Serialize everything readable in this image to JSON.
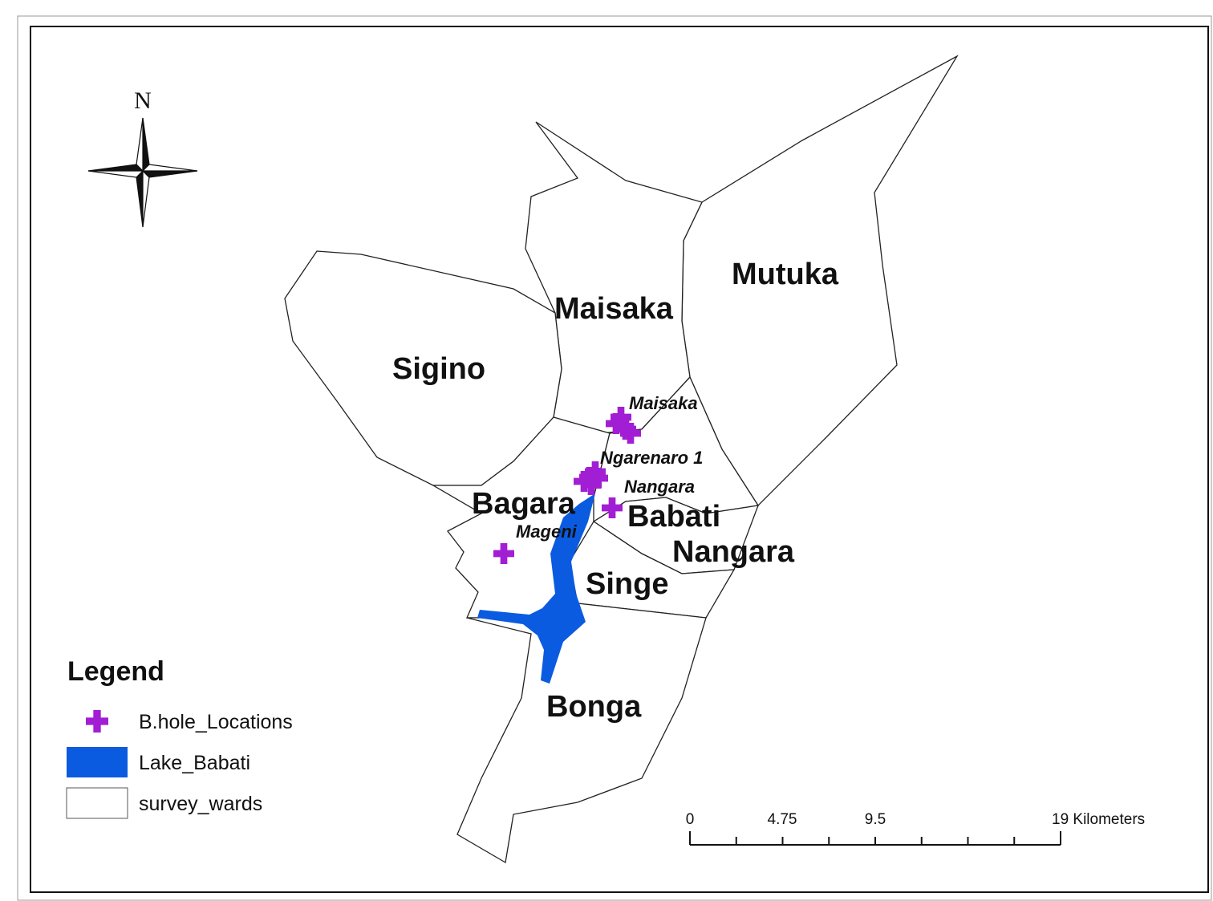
{
  "colors": {
    "borehole": "#a21ed4",
    "lake": "#0a5be0",
    "ward_fill": "#ffffff",
    "ward_stroke": "#222222"
  },
  "north_arrow": {
    "label": "N",
    "icon": "compass-rose-icon"
  },
  "wards": [
    {
      "id": "mutuka",
      "label": "Mutuka"
    },
    {
      "id": "maisaka",
      "label": "Maisaka"
    },
    {
      "id": "sigino",
      "label": "Sigino"
    },
    {
      "id": "bagara",
      "label": "Bagara"
    },
    {
      "id": "babati",
      "label": "Babati"
    },
    {
      "id": "nangara",
      "label": "Nangara"
    },
    {
      "id": "singe",
      "label": "Singe"
    },
    {
      "id": "bonga",
      "label": "Bonga"
    }
  ],
  "boreholes": [
    {
      "label": "Maisaka"
    },
    {
      "label": "Ngarenaro 1"
    },
    {
      "label": "Nangara"
    },
    {
      "label": "Mageni"
    }
  ],
  "legend": {
    "title": "Legend",
    "items": [
      {
        "label": "B.hole_Locations",
        "symbol": "plus-marker"
      },
      {
        "label": "Lake_Babati",
        "symbol": "filled-box"
      },
      {
        "label": "survey_wards",
        "symbol": "outline-box"
      }
    ]
  },
  "scale_bar": {
    "labels": [
      "0",
      "4.75",
      "9.5",
      "19 Kilometers"
    ],
    "units": "Kilometers",
    "max": 19
  }
}
